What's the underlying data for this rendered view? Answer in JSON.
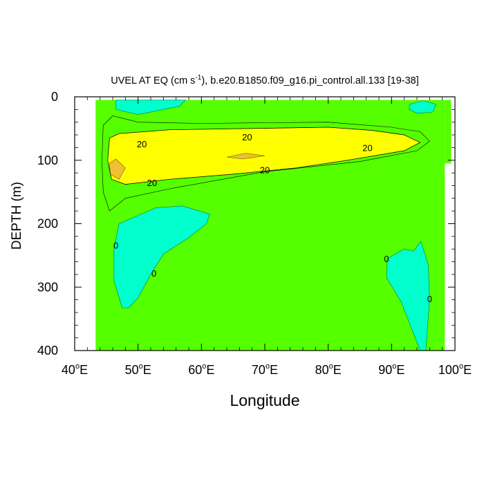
{
  "chart_data": {
    "type": "contour",
    "title": "UVEL AT EQ (cm s",
    "title_sup": "-1",
    "title_rest": "), b.e20.B1850.f09_g16.pi_control.all.133 [19-38]",
    "xlabel": "Longitude",
    "ylabel": "DEPTH (m)",
    "xlim": [
      40,
      100
    ],
    "ylim": [
      0,
      400
    ],
    "y_inverted": true,
    "x_ticks": [
      40,
      50,
      60,
      70,
      80,
      90,
      100
    ],
    "x_tick_labels": [
      {
        "num": "40",
        "deg": "o",
        "dir": "E"
      },
      {
        "num": "50",
        "deg": "o",
        "dir": "E"
      },
      {
        "num": "60",
        "deg": "o",
        "dir": "E"
      },
      {
        "num": "70",
        "deg": "o",
        "dir": "E"
      },
      {
        "num": "80",
        "deg": "o",
        "dir": "E"
      },
      {
        "num": "90",
        "deg": "o",
        "dir": "E"
      },
      {
        "num": "100",
        "deg": "o",
        "dir": "E"
      }
    ],
    "y_ticks": [
      0,
      100,
      200,
      300,
      400
    ],
    "y_tick_labels": [
      "0",
      "100",
      "200",
      "300",
      "400"
    ],
    "data_extent": {
      "lon": [
        43.3,
        98.4
      ],
      "depth": [
        5,
        400
      ]
    },
    "fill_colors": {
      "negative": "#00ffcc",
      "zero_to_20": "#55ff00",
      "level_20_40": "#ffff00",
      "level_40_plus": "#f0c030",
      "pos_0_10": "#00ee66"
    },
    "contour_labels": [
      {
        "text": "20",
        "lon": 50.6,
        "depth": 74
      },
      {
        "text": "20",
        "lon": 67.2,
        "depth": 63
      },
      {
        "text": "20",
        "lon": 86.2,
        "depth": 80
      },
      {
        "text": "20",
        "lon": 70.0,
        "depth": 115
      },
      {
        "text": "20",
        "lon": 52.2,
        "depth": 135
      },
      {
        "text": "0",
        "lon": 46.5,
        "depth": 234
      },
      {
        "text": "0",
        "lon": 52.5,
        "depth": 278
      },
      {
        "text": "0",
        "lon": 89.2,
        "depth": 255
      },
      {
        "text": "0",
        "lon": 96.0,
        "depth": 318
      }
    ],
    "regions": [
      {
        "name": "negative-surface-left",
        "fill": "negative",
        "points": [
          [
            46.5,
            5
          ],
          [
            57.5,
            5
          ],
          [
            56.5,
            15
          ],
          [
            50,
            28
          ],
          [
            46.5,
            20
          ]
        ]
      },
      {
        "name": "negative-surface-right",
        "fill": "negative",
        "points": [
          [
            92.8,
            12
          ],
          [
            95,
            6
          ],
          [
            97,
            12
          ],
          [
            96.5,
            24
          ],
          [
            94,
            26
          ],
          [
            92.8,
            20
          ]
        ]
      },
      {
        "name": "negative-mid-left",
        "fill": "negative",
        "points": [
          [
            47.5,
            333
          ],
          [
            46.2,
            290
          ],
          [
            46.2,
            240
          ],
          [
            47,
            200
          ],
          [
            50,
            187
          ],
          [
            52.8,
            175
          ],
          [
            57,
            172
          ],
          [
            61.3,
            185
          ],
          [
            60.8,
            200
          ],
          [
            58,
            222
          ],
          [
            54,
            248
          ],
          [
            52,
            280
          ],
          [
            50,
            317
          ],
          [
            48.5,
            333
          ]
        ]
      },
      {
        "name": "negative-deep-right",
        "fill": "negative",
        "points": [
          [
            94.5,
            400
          ],
          [
            91.5,
            323
          ],
          [
            89.2,
            285
          ],
          [
            89.3,
            255
          ],
          [
            92,
            240
          ],
          [
            93.5,
            243
          ],
          [
            94.6,
            228
          ],
          [
            95,
            240
          ],
          [
            95.8,
            265
          ],
          [
            96,
            320
          ],
          [
            95.4,
            400
          ]
        ]
      },
      {
        "name": "band-20-40",
        "fill": "level_20_40",
        "points": [
          [
            45.2,
            100
          ],
          [
            45.5,
            65
          ],
          [
            47,
            58
          ],
          [
            55,
            52
          ],
          [
            80,
            48
          ],
          [
            87,
            53
          ],
          [
            92,
            60
          ],
          [
            94.5,
            72
          ],
          [
            92,
            85
          ],
          [
            83,
            100
          ],
          [
            75,
            112
          ],
          [
            65,
            122
          ],
          [
            55,
            130
          ],
          [
            48,
            138
          ],
          [
            45.8,
            130
          ]
        ]
      },
      {
        "name": "band-40-plus-left",
        "fill": "level_40_plus",
        "points": [
          [
            45.5,
            105
          ],
          [
            46.5,
            98
          ],
          [
            48,
            112
          ],
          [
            47,
            130
          ],
          [
            45.6,
            122
          ]
        ]
      },
      {
        "name": "band-40-plus-core",
        "fill": "level_40_plus",
        "points": [
          [
            64,
            95
          ],
          [
            67,
            89
          ],
          [
            70,
            93
          ],
          [
            66.5,
            98
          ]
        ]
      }
    ]
  }
}
